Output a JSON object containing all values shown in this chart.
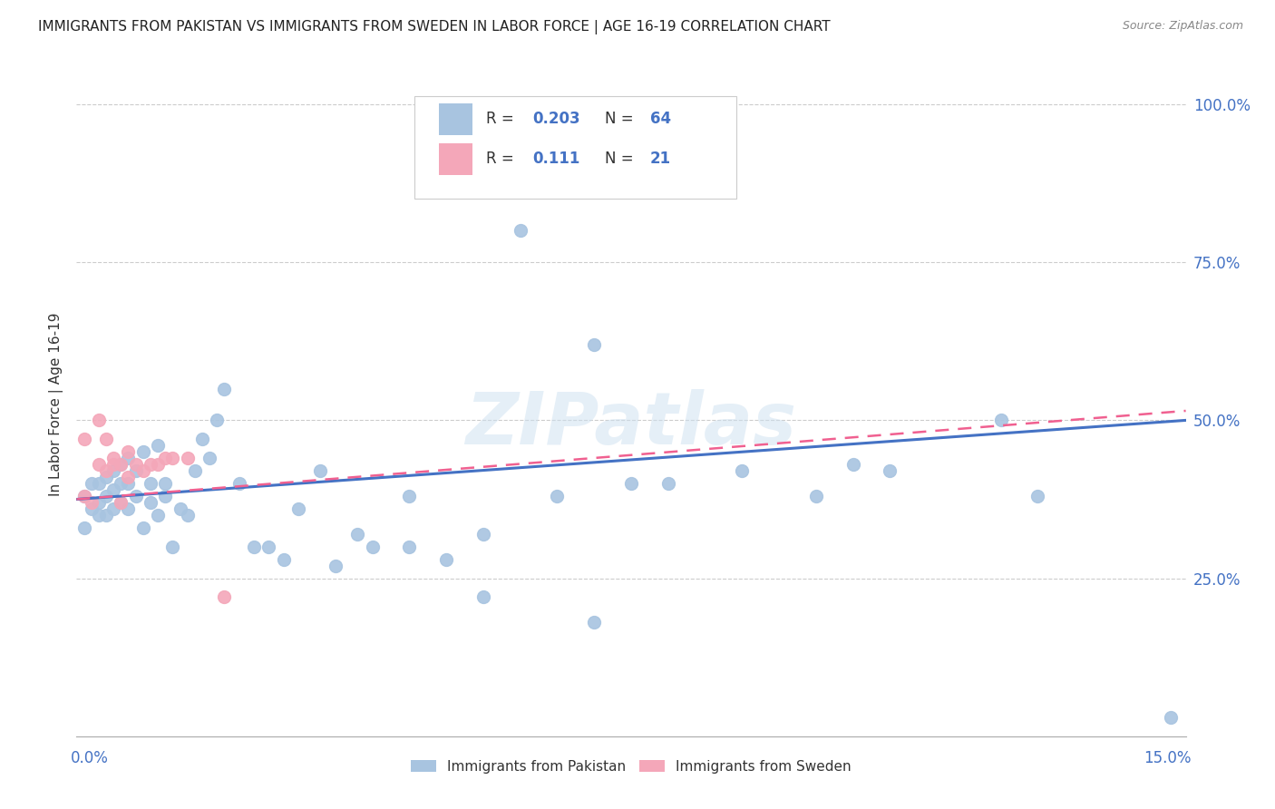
{
  "title": "IMMIGRANTS FROM PAKISTAN VS IMMIGRANTS FROM SWEDEN IN LABOR FORCE | AGE 16-19 CORRELATION CHART",
  "source": "Source: ZipAtlas.com",
  "ylabel": "In Labor Force | Age 16-19",
  "xmin": 0.0,
  "xmax": 0.15,
  "ymin": 0.0,
  "ymax": 1.05,
  "pakistan_color": "#a8c4e0",
  "sweden_color": "#f4a7b9",
  "pakistan_line_color": "#4472c4",
  "sweden_line_color": "#f06090",
  "watermark": "ZIPatlas",
  "pakistan_x": [
    0.001,
    0.001,
    0.002,
    0.002,
    0.003,
    0.003,
    0.003,
    0.004,
    0.004,
    0.004,
    0.005,
    0.005,
    0.005,
    0.006,
    0.006,
    0.006,
    0.007,
    0.007,
    0.007,
    0.008,
    0.008,
    0.009,
    0.009,
    0.01,
    0.01,
    0.011,
    0.011,
    0.012,
    0.012,
    0.013,
    0.014,
    0.015,
    0.016,
    0.017,
    0.018,
    0.019,
    0.02,
    0.022,
    0.024,
    0.026,
    0.028,
    0.03,
    0.033,
    0.035,
    0.038,
    0.04,
    0.045,
    0.05,
    0.055,
    0.06,
    0.065,
    0.07,
    0.075,
    0.08,
    0.09,
    0.1,
    0.11,
    0.13,
    0.148,
    0.07,
    0.045,
    0.055,
    0.105,
    0.125
  ],
  "pakistan_y": [
    0.38,
    0.33,
    0.4,
    0.36,
    0.4,
    0.37,
    0.35,
    0.41,
    0.38,
    0.35,
    0.39,
    0.36,
    0.42,
    0.4,
    0.43,
    0.37,
    0.44,
    0.4,
    0.36,
    0.42,
    0.38,
    0.45,
    0.33,
    0.4,
    0.37,
    0.46,
    0.35,
    0.4,
    0.38,
    0.3,
    0.36,
    0.35,
    0.42,
    0.47,
    0.44,
    0.5,
    0.55,
    0.4,
    0.3,
    0.3,
    0.28,
    0.36,
    0.42,
    0.27,
    0.32,
    0.3,
    0.38,
    0.28,
    0.32,
    0.8,
    0.38,
    0.62,
    0.4,
    0.4,
    0.42,
    0.38,
    0.42,
    0.38,
    0.03,
    0.18,
    0.3,
    0.22,
    0.43,
    0.5
  ],
  "sweden_x": [
    0.001,
    0.001,
    0.002,
    0.003,
    0.003,
    0.004,
    0.004,
    0.005,
    0.005,
    0.006,
    0.006,
    0.007,
    0.007,
    0.008,
    0.009,
    0.01,
    0.011,
    0.012,
    0.013,
    0.015,
    0.02
  ],
  "sweden_y": [
    0.38,
    0.47,
    0.37,
    0.43,
    0.5,
    0.42,
    0.47,
    0.44,
    0.43,
    0.43,
    0.37,
    0.41,
    0.45,
    0.43,
    0.42,
    0.43,
    0.43,
    0.44,
    0.44,
    0.44,
    0.22
  ],
  "grid_color": "#cccccc",
  "background_color": "#ffffff",
  "title_color": "#222222",
  "tick_label_color": "#4472c4"
}
